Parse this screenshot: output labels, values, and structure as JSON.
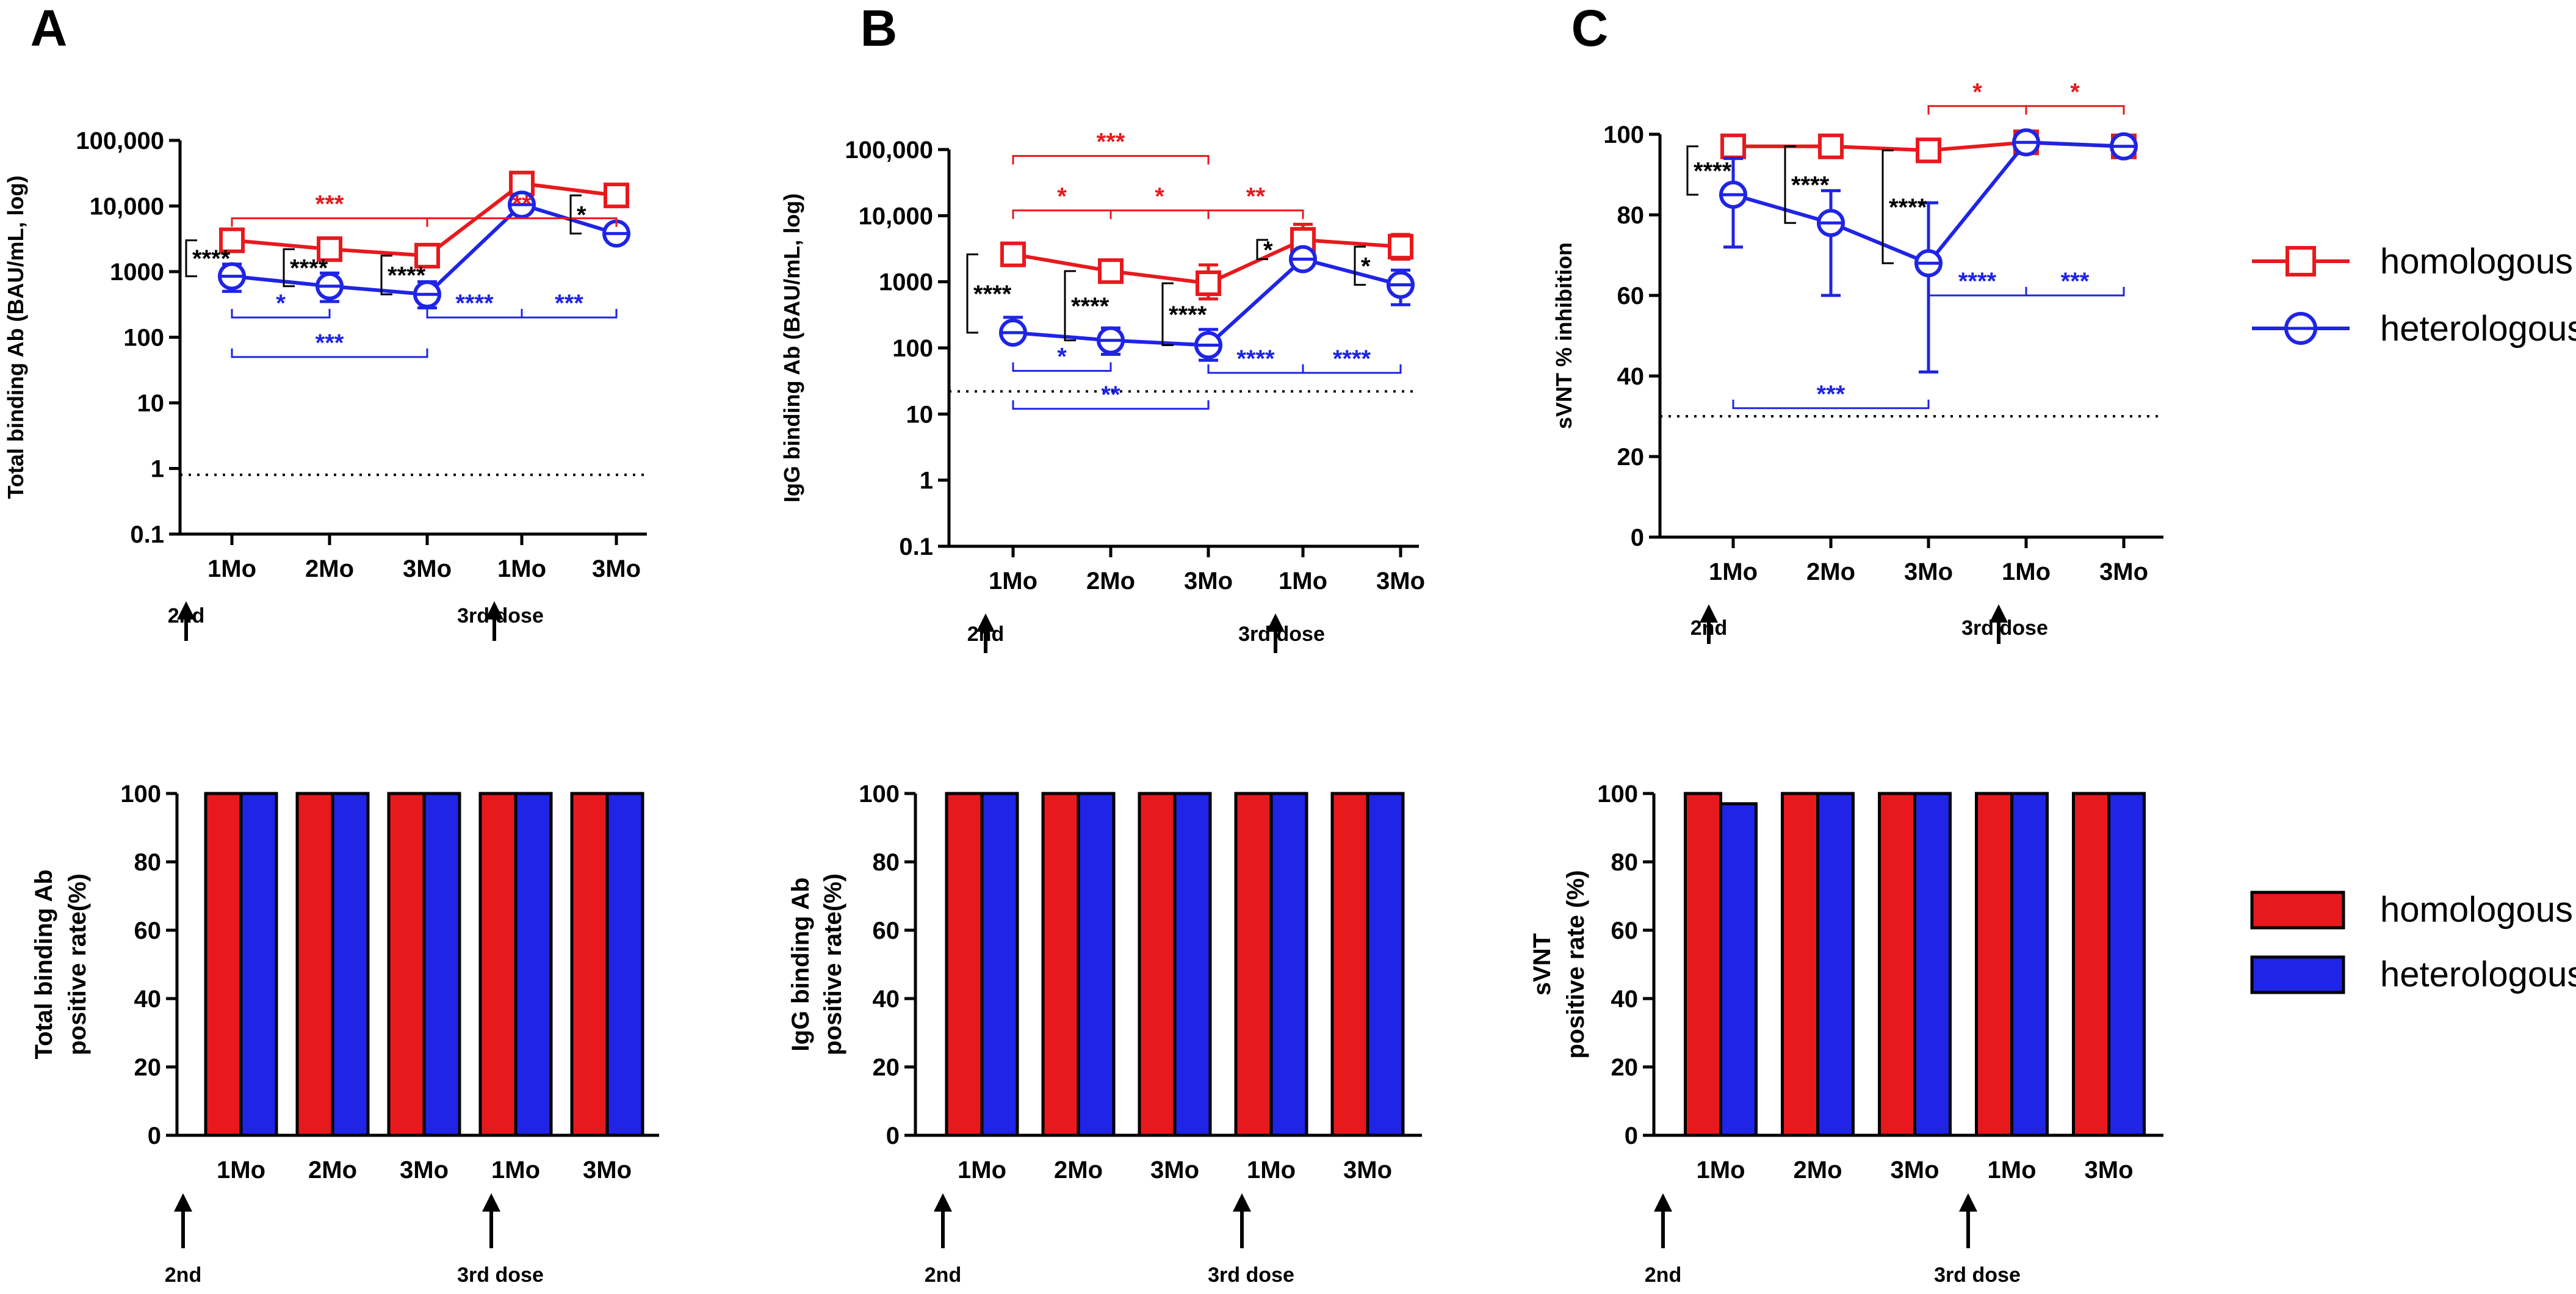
{
  "colors": {
    "homologous": "#e8191d",
    "heterologous": "#1f24e6",
    "axis": "#000000"
  },
  "legend": {
    "line": [
      "homologous",
      "heterologous"
    ],
    "bar": [
      "homologous",
      "heterologous"
    ]
  },
  "dose_labels": {
    "second": "2nd",
    "third": "3rd dose"
  },
  "chart_data": [
    {
      "panel": "A",
      "type": "line",
      "yscale": "log",
      "ylabel": "Total binding Ab (BAU/mL, log)",
      "ylim": [
        0.1,
        100000
      ],
      "yticks": [
        {
          "v": 0.1,
          "label": "0.1"
        },
        {
          "v": 1,
          "label": "1"
        },
        {
          "v": 10,
          "label": "10"
        },
        {
          "v": 100,
          "label": "100"
        },
        {
          "v": 1000,
          "label": "1000"
        },
        {
          "v": 10000,
          "label": "10,000"
        },
        {
          "v": 100000,
          "label": "100,000"
        }
      ],
      "categories": [
        "1Mo",
        "2Mo",
        "3Mo",
        "1Mo",
        "3Mo"
      ],
      "threshold": 0.8,
      "series": [
        {
          "name": "homologous",
          "values": [
            3000,
            2200,
            1750,
            22000,
            14500
          ],
          "err_low": [
            2300,
            1700,
            1400,
            15000,
            11000
          ],
          "err_high": [
            3900,
            2900,
            2300,
            32000,
            19000
          ]
        },
        {
          "name": "heterologous",
          "values": [
            850,
            600,
            450,
            10500,
            3800
          ],
          "err_low": [
            500,
            350,
            280,
            8000,
            3000
          ],
          "err_high": [
            1300,
            950,
            700,
            13000,
            4700
          ]
        }
      ],
      "annotations": [
        {
          "text": "***",
          "color": "red",
          "x1": 0,
          "x2": 2,
          "yv": 6500,
          "side": "above"
        },
        {
          "text": "**",
          "color": "red",
          "x1": 2,
          "x2": 4,
          "yv": 6500,
          "side": "above"
        },
        {
          "text": "*",
          "color": "blue",
          "x1": 0,
          "x2": 1,
          "yv": 200,
          "side": "above"
        },
        {
          "text": "***",
          "color": "blue",
          "x1": 0,
          "x2": 2,
          "yv": 50,
          "side": "above"
        },
        {
          "text": "****",
          "color": "blue",
          "x1": 2,
          "x2": 3,
          "yv": 200,
          "side": "above"
        },
        {
          "text": "***",
          "color": "blue",
          "x1": 3,
          "x2": 4,
          "yv": 200,
          "side": "above"
        },
        {
          "text": "****",
          "color": "black",
          "x": 0,
          "ytop": 3000,
          "ybot": 850
        },
        {
          "text": "****",
          "color": "black",
          "x": 1,
          "ytop": 2200,
          "ybot": 600
        },
        {
          "text": "****",
          "color": "black",
          "x": 2,
          "ytop": 1750,
          "ybot": 450
        },
        {
          "text": "*",
          "color": "black",
          "x": 4,
          "ytop": 14500,
          "ybot": 3800
        }
      ]
    },
    {
      "panel": "B",
      "type": "line",
      "yscale": "log",
      "ylabel": "IgG binding Ab (BAU/mL, log)",
      "ylim": [
        0.1,
        100000
      ],
      "yticks": [
        {
          "v": 0.1,
          "label": "0.1"
        },
        {
          "v": 1,
          "label": "1"
        },
        {
          "v": 10,
          "label": "10"
        },
        {
          "v": 100,
          "label": "100"
        },
        {
          "v": 1000,
          "label": "1000"
        },
        {
          "v": 10000,
          "label": "10,000"
        },
        {
          "v": 100000,
          "label": "100,000"
        }
      ],
      "categories": [
        "1Mo",
        "2Mo",
        "3Mo",
        "1Mo",
        "3Mo"
      ],
      "threshold": 22,
      "series": [
        {
          "name": "homologous",
          "values": [
            2600,
            1450,
            950,
            4300,
            3400
          ],
          "err_low": [
            2000,
            1150,
            550,
            2500,
            2200
          ],
          "err_high": [
            3300,
            1900,
            1800,
            7400,
            5200
          ]
        },
        {
          "name": "heterologous",
          "values": [
            170,
            130,
            110,
            2200,
            900
          ],
          "err_low": [
            130,
            80,
            65,
            1700,
            450
          ],
          "err_high": [
            290,
            200,
            190,
            2900,
            1500
          ]
        }
      ],
      "annotations": [
        {
          "text": "***",
          "color": "red",
          "x1": 0,
          "x2": 2,
          "yv": 80000,
          "side": "above"
        },
        {
          "text": "*",
          "color": "red",
          "x1": 0,
          "x2": 1,
          "yv": 12000,
          "side": "above"
        },
        {
          "text": "*",
          "color": "red",
          "x1": 1,
          "x2": 2,
          "yv": 12000,
          "side": "above"
        },
        {
          "text": "**",
          "color": "red",
          "x1": 2,
          "x2": 3,
          "yv": 12000,
          "side": "above"
        },
        {
          "text": "*",
          "color": "blue",
          "x1": 0,
          "x2": 1,
          "yv": 45,
          "side": "above"
        },
        {
          "text": "**",
          "color": "blue",
          "x1": 0,
          "x2": 2,
          "yv": 12,
          "side": "above"
        },
        {
          "text": "****",
          "color": "blue",
          "x1": 2,
          "x2": 3,
          "yv": 42,
          "side": "above"
        },
        {
          "text": "****",
          "color": "blue",
          "x1": 3,
          "x2": 4,
          "yv": 42,
          "side": "above"
        },
        {
          "text": "****",
          "color": "black",
          "x": 0,
          "ytop": 2600,
          "ybot": 170
        },
        {
          "text": "****",
          "color": "black",
          "x": 1,
          "ytop": 1450,
          "ybot": 130
        },
        {
          "text": "****",
          "color": "black",
          "x": 2,
          "ytop": 950,
          "ybot": 110
        },
        {
          "text": "*",
          "color": "black",
          "x": 3,
          "ytop": 4300,
          "ybot": 2200
        },
        {
          "text": "*",
          "color": "black",
          "x": 4,
          "ytop": 3400,
          "ybot": 900
        }
      ]
    },
    {
      "panel": "C",
      "type": "line",
      "yscale": "linear",
      "ylabel": "sVNT % inhibition",
      "ylim": [
        0,
        100
      ],
      "yticks": [
        {
          "v": 0,
          "label": "0"
        },
        {
          "v": 20,
          "label": "20"
        },
        {
          "v": 40,
          "label": "40"
        },
        {
          "v": 60,
          "label": "60"
        },
        {
          "v": 80,
          "label": "80"
        },
        {
          "v": 100,
          "label": "100"
        }
      ],
      "categories": [
        "1Mo",
        "2Mo",
        "3Mo",
        "1Mo",
        "3Mo"
      ],
      "threshold": 30,
      "series": [
        {
          "name": "homologous",
          "values": [
            97,
            97,
            96,
            98,
            97
          ],
          "err_low": [
            96,
            96,
            95,
            97,
            96
          ],
          "err_high": [
            98,
            98,
            97,
            99,
            98
          ]
        },
        {
          "name": "heterologous",
          "values": [
            85,
            78,
            68,
            98,
            97
          ],
          "err_low": [
            72,
            60,
            41,
            97,
            96
          ],
          "err_high": [
            94,
            86,
            83,
            99,
            98
          ]
        }
      ],
      "annotations": [
        {
          "text": "*",
          "color": "red",
          "x1": 2,
          "x2": 3,
          "yv": 107,
          "side": "above"
        },
        {
          "text": "*",
          "color": "red",
          "x1": 3,
          "x2": 4,
          "yv": 107,
          "side": "above"
        },
        {
          "text": "****",
          "color": "blue",
          "x1": 2,
          "x2": 3,
          "yv": 60,
          "side": "above"
        },
        {
          "text": "***",
          "color": "blue",
          "x1": 3,
          "x2": 4,
          "yv": 60,
          "side": "above"
        },
        {
          "text": "***",
          "color": "blue",
          "x1": 0,
          "x2": 2,
          "yv": 32,
          "side": "above"
        },
        {
          "text": "****",
          "color": "black",
          "x": 0,
          "ytop": 97,
          "ybot": 85
        },
        {
          "text": "****",
          "color": "black",
          "x": 1,
          "ytop": 97,
          "ybot": 78
        },
        {
          "text": "****",
          "color": "black",
          "x": 2,
          "ytop": 96,
          "ybot": 68
        }
      ]
    },
    {
      "panel": "A-bottom",
      "type": "bar",
      "ylabel": [
        "Total binding Ab",
        "positive rate(%)"
      ],
      "ylim": [
        0,
        100
      ],
      "yticks": [
        {
          "v": 0,
          "label": "0"
        },
        {
          "v": 20,
          "label": "20"
        },
        {
          "v": 40,
          "label": "40"
        },
        {
          "v": 60,
          "label": "60"
        },
        {
          "v": 80,
          "label": "80"
        },
        {
          "v": 100,
          "label": "100"
        }
      ],
      "categories": [
        "1Mo",
        "2Mo",
        "3Mo",
        "1Mo",
        "3Mo"
      ],
      "series": [
        {
          "name": "homologous",
          "values": [
            100,
            100,
            100,
            100,
            100
          ]
        },
        {
          "name": "heterologous",
          "values": [
            100,
            100,
            100,
            100,
            100
          ]
        }
      ]
    },
    {
      "panel": "B-bottom",
      "type": "bar",
      "ylabel": [
        "IgG binding Ab",
        "positive rate(%)"
      ],
      "ylim": [
        0,
        100
      ],
      "yticks": [
        {
          "v": 0,
          "label": "0"
        },
        {
          "v": 20,
          "label": "20"
        },
        {
          "v": 40,
          "label": "40"
        },
        {
          "v": 60,
          "label": "60"
        },
        {
          "v": 80,
          "label": "80"
        },
        {
          "v": 100,
          "label": "100"
        }
      ],
      "categories": [
        "1Mo",
        "2Mo",
        "3Mo",
        "1Mo",
        "3Mo"
      ],
      "series": [
        {
          "name": "homologous",
          "values": [
            100,
            100,
            100,
            100,
            100
          ]
        },
        {
          "name": "heterologous",
          "values": [
            100,
            100,
            100,
            100,
            100
          ]
        }
      ]
    },
    {
      "panel": "C-bottom",
      "type": "bar",
      "ylabel": [
        "sVNT",
        "positive rate (%)"
      ],
      "ylim": [
        0,
        100
      ],
      "yticks": [
        {
          "v": 0,
          "label": "0"
        },
        {
          "v": 20,
          "label": "20"
        },
        {
          "v": 40,
          "label": "40"
        },
        {
          "v": 60,
          "label": "60"
        },
        {
          "v": 80,
          "label": "80"
        },
        {
          "v": 100,
          "label": "100"
        }
      ],
      "categories": [
        "1Mo",
        "2Mo",
        "3Mo",
        "1Mo",
        "3Mo"
      ],
      "series": [
        {
          "name": "homologous",
          "values": [
            100,
            100,
            100,
            100,
            100
          ]
        },
        {
          "name": "heterologous",
          "values": [
            97,
            100,
            100,
            100,
            100
          ]
        }
      ]
    }
  ]
}
